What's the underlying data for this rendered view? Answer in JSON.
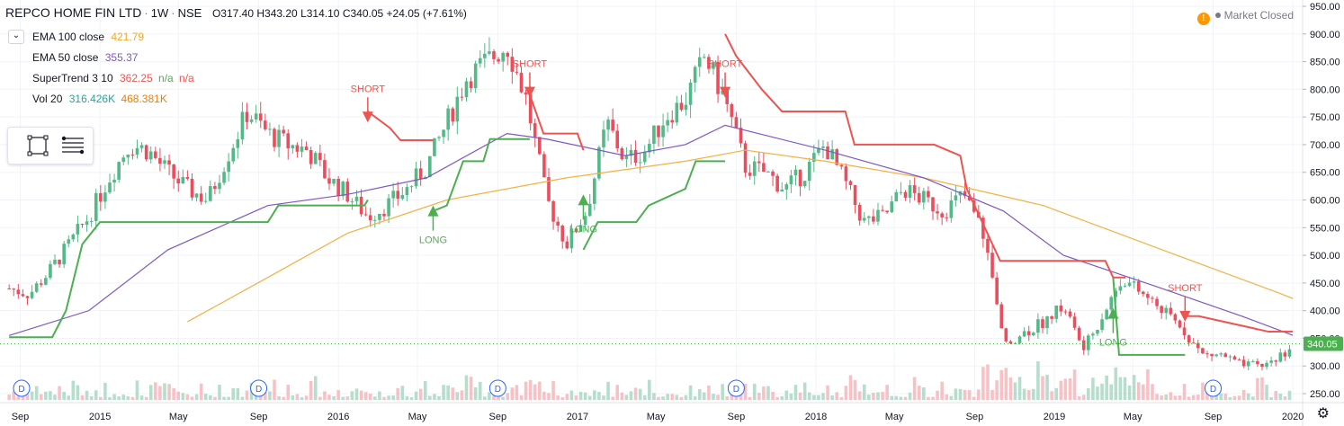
{
  "header": {
    "symbol": "REPCO HOME FIN LTD",
    "interval": "1W",
    "exchange": "NSE",
    "open": "O317.40",
    "high": "H343.20",
    "low": "L314.10",
    "close": "C340.05",
    "change": "+24.05 (+7.61%)"
  },
  "legend": {
    "ema100_label": "EMA 100 close",
    "ema100_value": "421.79",
    "ema50_label": "EMA 50 close",
    "ema50_value": "355.37",
    "st_label": "SuperTrend 3 10",
    "st_value": "362.25",
    "st_na1": "n/a",
    "st_na2": "n/a",
    "vol_label": "Vol 20",
    "vol_value1": "316.426K",
    "vol_value2": "468.381K"
  },
  "status": {
    "warning": "!",
    "text": "Market Closed"
  },
  "colors": {
    "up": "#53b987",
    "down": "#eb4d5c",
    "ema100": "#f5b041",
    "ema50": "#7e57c2",
    "st_up": "#4caf50",
    "st_down": "#ef5350",
    "price_label": "#4caf50"
  },
  "icons": {
    "toolbox_rect": "square-select-icon",
    "toolbox_lines": "lines-icon",
    "settings": "gear-icon"
  },
  "chart_data": {
    "type": "candlestick",
    "title": "REPCO HOME FIN LTD · 1W · NSE",
    "ylim": [
      250,
      950
    ],
    "y_ticks": [
      950,
      900,
      850,
      800,
      750,
      700,
      650,
      600,
      550,
      500,
      450,
      400,
      350,
      300,
      250
    ],
    "y_tick_labels": [
      "950.00",
      "900.00",
      "850.00",
      "800.00",
      "750.00",
      "700.00",
      "650.00",
      "600.00",
      "550.00",
      "500.00",
      "450.00",
      "400.00",
      "350.00",
      "300.00",
      "250.00"
    ],
    "x_ticks": [
      {
        "label": "Sep",
        "x": "2014-09"
      },
      {
        "label": "2015",
        "x": "2015-01"
      },
      {
        "label": "May",
        "x": "2015-05"
      },
      {
        "label": "Sep",
        "x": "2015-09"
      },
      {
        "label": "2016",
        "x": "2016-01"
      },
      {
        "label": "May",
        "x": "2016-05"
      },
      {
        "label": "Sep",
        "x": "2016-09"
      },
      {
        "label": "2017",
        "x": "2017-01"
      },
      {
        "label": "May",
        "x": "2017-05"
      },
      {
        "label": "Sep",
        "x": "2017-09"
      },
      {
        "label": "2018",
        "x": "2018-01"
      },
      {
        "label": "May",
        "x": "2018-05"
      },
      {
        "label": "Sep",
        "x": "2018-09"
      },
      {
        "label": "2019",
        "x": "2019-01"
      },
      {
        "label": "May",
        "x": "2019-05"
      },
      {
        "label": "Sep",
        "x": "2019-09"
      },
      {
        "label": "2020",
        "x": "2020-01"
      }
    ],
    "last_price": "340.05",
    "price_path": [
      [
        "2014-08-15",
        440
      ],
      [
        "2014-09-15",
        430
      ],
      [
        "2014-10-15",
        470
      ],
      [
        "2014-11-15",
        520
      ],
      [
        "2014-12-15",
        570
      ],
      [
        "2015-01-15",
        640
      ],
      [
        "2015-02-15",
        700
      ],
      [
        "2015-03-15",
        690
      ],
      [
        "2015-04-15",
        650
      ],
      [
        "2015-05-15",
        620
      ],
      [
        "2015-06-15",
        600
      ],
      [
        "2015-07-15",
        680
      ],
      [
        "2015-08-15",
        760
      ],
      [
        "2015-09-15",
        720
      ],
      [
        "2015-10-15",
        700
      ],
      [
        "2015-11-15",
        690
      ],
      [
        "2015-12-15",
        640
      ],
      [
        "2016-01-15",
        610
      ],
      [
        "2016-02-15",
        570
      ],
      [
        "2016-03-15",
        590
      ],
      [
        "2016-04-15",
        620
      ],
      [
        "2016-05-15",
        660
      ],
      [
        "2016-06-15",
        740
      ],
      [
        "2016-07-15",
        820
      ],
      [
        "2016-08-15",
        850
      ],
      [
        "2016-09-15",
        880
      ],
      [
        "2016-10-15",
        780
      ],
      [
        "2016-11-15",
        600
      ],
      [
        "2016-12-15",
        520
      ],
      [
        "2017-01-15",
        580
      ],
      [
        "2017-02-15",
        740
      ],
      [
        "2017-03-15",
        670
      ],
      [
        "2017-04-15",
        690
      ],
      [
        "2017-05-15",
        750
      ],
      [
        "2017-06-15",
        780
      ],
      [
        "2017-07-15",
        860
      ],
      [
        "2017-08-15",
        780
      ],
      [
        "2017-09-15",
        660
      ],
      [
        "2017-10-15",
        650
      ],
      [
        "2017-11-15",
        620
      ],
      [
        "2017-12-15",
        650
      ],
      [
        "2018-01-15",
        700
      ],
      [
        "2018-02-15",
        630
      ],
      [
        "2018-03-15",
        560
      ],
      [
        "2018-04-15",
        570
      ],
      [
        "2018-05-15",
        620
      ],
      [
        "2018-06-15",
        600
      ],
      [
        "2018-07-15",
        580
      ],
      [
        "2018-08-15",
        610
      ],
      [
        "2018-09-15",
        540
      ],
      [
        "2018-10-15",
        340
      ],
      [
        "2018-11-15",
        360
      ],
      [
        "2018-12-15",
        380
      ],
      [
        "2019-01-15",
        410
      ],
      [
        "2019-02-15",
        330
      ],
      [
        "2019-03-15",
        390
      ],
      [
        "2019-04-15",
        460
      ],
      [
        "2019-05-15",
        430
      ],
      [
        "2019-06-15",
        400
      ],
      [
        "2019-07-15",
        370
      ],
      [
        "2019-08-15",
        320
      ],
      [
        "2019-09-15",
        320
      ],
      [
        "2019-10-15",
        300
      ],
      [
        "2019-11-15",
        300
      ],
      [
        "2019-12-15",
        320
      ],
      [
        "2020-01-01",
        340
      ]
    ],
    "ema100": [
      [
        "2015-05-15",
        380
      ],
      [
        "2015-09-15",
        460
      ],
      [
        "2016-01-15",
        540
      ],
      [
        "2016-06-15",
        600
      ],
      [
        "2016-12-15",
        640
      ],
      [
        "2017-06-15",
        670
      ],
      [
        "2017-09-15",
        690
      ],
      [
        "2018-01-15",
        670
      ],
      [
        "2018-06-15",
        640
      ],
      [
        "2018-12-15",
        590
      ],
      [
        "2019-06-15",
        510
      ],
      [
        "2019-12-15",
        430
      ],
      [
        "2020-01-01",
        421.79
      ]
    ],
    "ema50": [
      [
        "2014-08-15",
        355
      ],
      [
        "2014-12-15",
        400
      ],
      [
        "2015-04-15",
        510
      ],
      [
        "2015-09-15",
        590
      ],
      [
        "2016-01-15",
        610
      ],
      [
        "2016-05-15",
        640
      ],
      [
        "2016-09-15",
        720
      ],
      [
        "2016-11-15",
        710
      ],
      [
        "2017-03-15",
        680
      ],
      [
        "2017-06-15",
        700
      ],
      [
        "2017-08-15",
        735
      ],
      [
        "2018-01-15",
        690
      ],
      [
        "2018-06-15",
        640
      ],
      [
        "2018-10-15",
        580
      ],
      [
        "2019-01-15",
        500
      ],
      [
        "2019-06-15",
        440
      ],
      [
        "2019-10-15",
        390
      ],
      [
        "2020-01-01",
        355.37
      ]
    ],
    "supertrend_segments": [
      {
        "dir": "up",
        "points": [
          [
            "2014-08-15",
            352
          ],
          [
            "2014-10-20",
            352
          ],
          [
            "2014-11-10",
            400
          ],
          [
            "2014-12-05",
            520
          ],
          [
            "2015-01-01",
            560
          ],
          [
            "2015-09-15",
            560
          ],
          [
            "2015-10-01",
            590
          ],
          [
            "2016-02-10",
            590
          ],
          [
            "2016-02-15",
            600
          ]
        ]
      },
      {
        "dir": "down",
        "points": [
          [
            "2016-02-15",
            760
          ],
          [
            "2016-03-20",
            730
          ],
          [
            "2016-04-05",
            708
          ],
          [
            "2016-05-25",
            708
          ]
        ]
      },
      {
        "dir": "up",
        "points": [
          [
            "2016-05-25",
            580
          ],
          [
            "2016-06-15",
            590
          ],
          [
            "2016-07-10",
            670
          ],
          [
            "2016-08-10",
            670
          ],
          [
            "2016-08-20",
            710
          ],
          [
            "2016-10-20",
            710
          ]
        ]
      },
      {
        "dir": "down",
        "points": [
          [
            "2016-10-20",
            790
          ],
          [
            "2016-11-10",
            720
          ],
          [
            "2017-01-01",
            720
          ],
          [
            "2017-01-10",
            690
          ]
        ]
      },
      {
        "dir": "up",
        "points": [
          [
            "2017-01-10",
            510
          ],
          [
            "2017-02-01",
            560
          ],
          [
            "2017-04-01",
            560
          ],
          [
            "2017-04-20",
            590
          ],
          [
            "2017-06-15",
            620
          ],
          [
            "2017-07-01",
            670
          ],
          [
            "2017-08-15",
            670
          ]
        ]
      },
      {
        "dir": "down",
        "points": [
          [
            "2017-08-15",
            900
          ],
          [
            "2017-09-01",
            860
          ],
          [
            "2017-10-10",
            800
          ],
          [
            "2017-11-10",
            760
          ],
          [
            "2018-02-15",
            760
          ],
          [
            "2018-03-01",
            700
          ],
          [
            "2018-07-01",
            700
          ],
          [
            "2018-08-10",
            680
          ],
          [
            "2018-08-20",
            620
          ],
          [
            "2018-10-10",
            490
          ],
          [
            "2019-03-20",
            490
          ],
          [
            "2019-04-01",
            460
          ],
          [
            "2019-04-20",
            460
          ]
        ]
      },
      {
        "dir": "up",
        "points": [
          [
            "2019-04-01",
            460
          ],
          [
            "2019-04-10",
            320
          ],
          [
            "2019-07-20",
            320
          ]
        ]
      },
      {
        "dir": "down",
        "points": [
          [
            "2019-07-20",
            390
          ],
          [
            "2019-08-10",
            390
          ],
          [
            "2019-11-25",
            362
          ],
          [
            "2020-01-01",
            362.25
          ]
        ]
      }
    ],
    "annotations": [
      {
        "text": "SHORT",
        "x": "2016-02-15",
        "y": 740,
        "dir": "down"
      },
      {
        "text": "LONG",
        "x": "2016-05-25",
        "y": 590,
        "dir": "up"
      },
      {
        "text": "SHORT",
        "x": "2016-10-20",
        "y": 785,
        "dir": "down"
      },
      {
        "text": "LONG",
        "x": "2017-01-10",
        "y": 610,
        "dir": "up"
      },
      {
        "text": "SHORT",
        "x": "2017-08-15",
        "y": 785,
        "dir": "down"
      },
      {
        "text": "LONG",
        "x": "2019-04-01",
        "y": 405,
        "dir": "up"
      },
      {
        "text": "SHORT",
        "x": "2019-07-20",
        "y": 380,
        "dir": "down"
      }
    ],
    "dividend_markers": [
      "2014-08-15",
      "2015-09-01",
      "2016-09-01",
      "2017-09-01",
      "2019-09-01"
    ],
    "dividend_label": "D"
  }
}
